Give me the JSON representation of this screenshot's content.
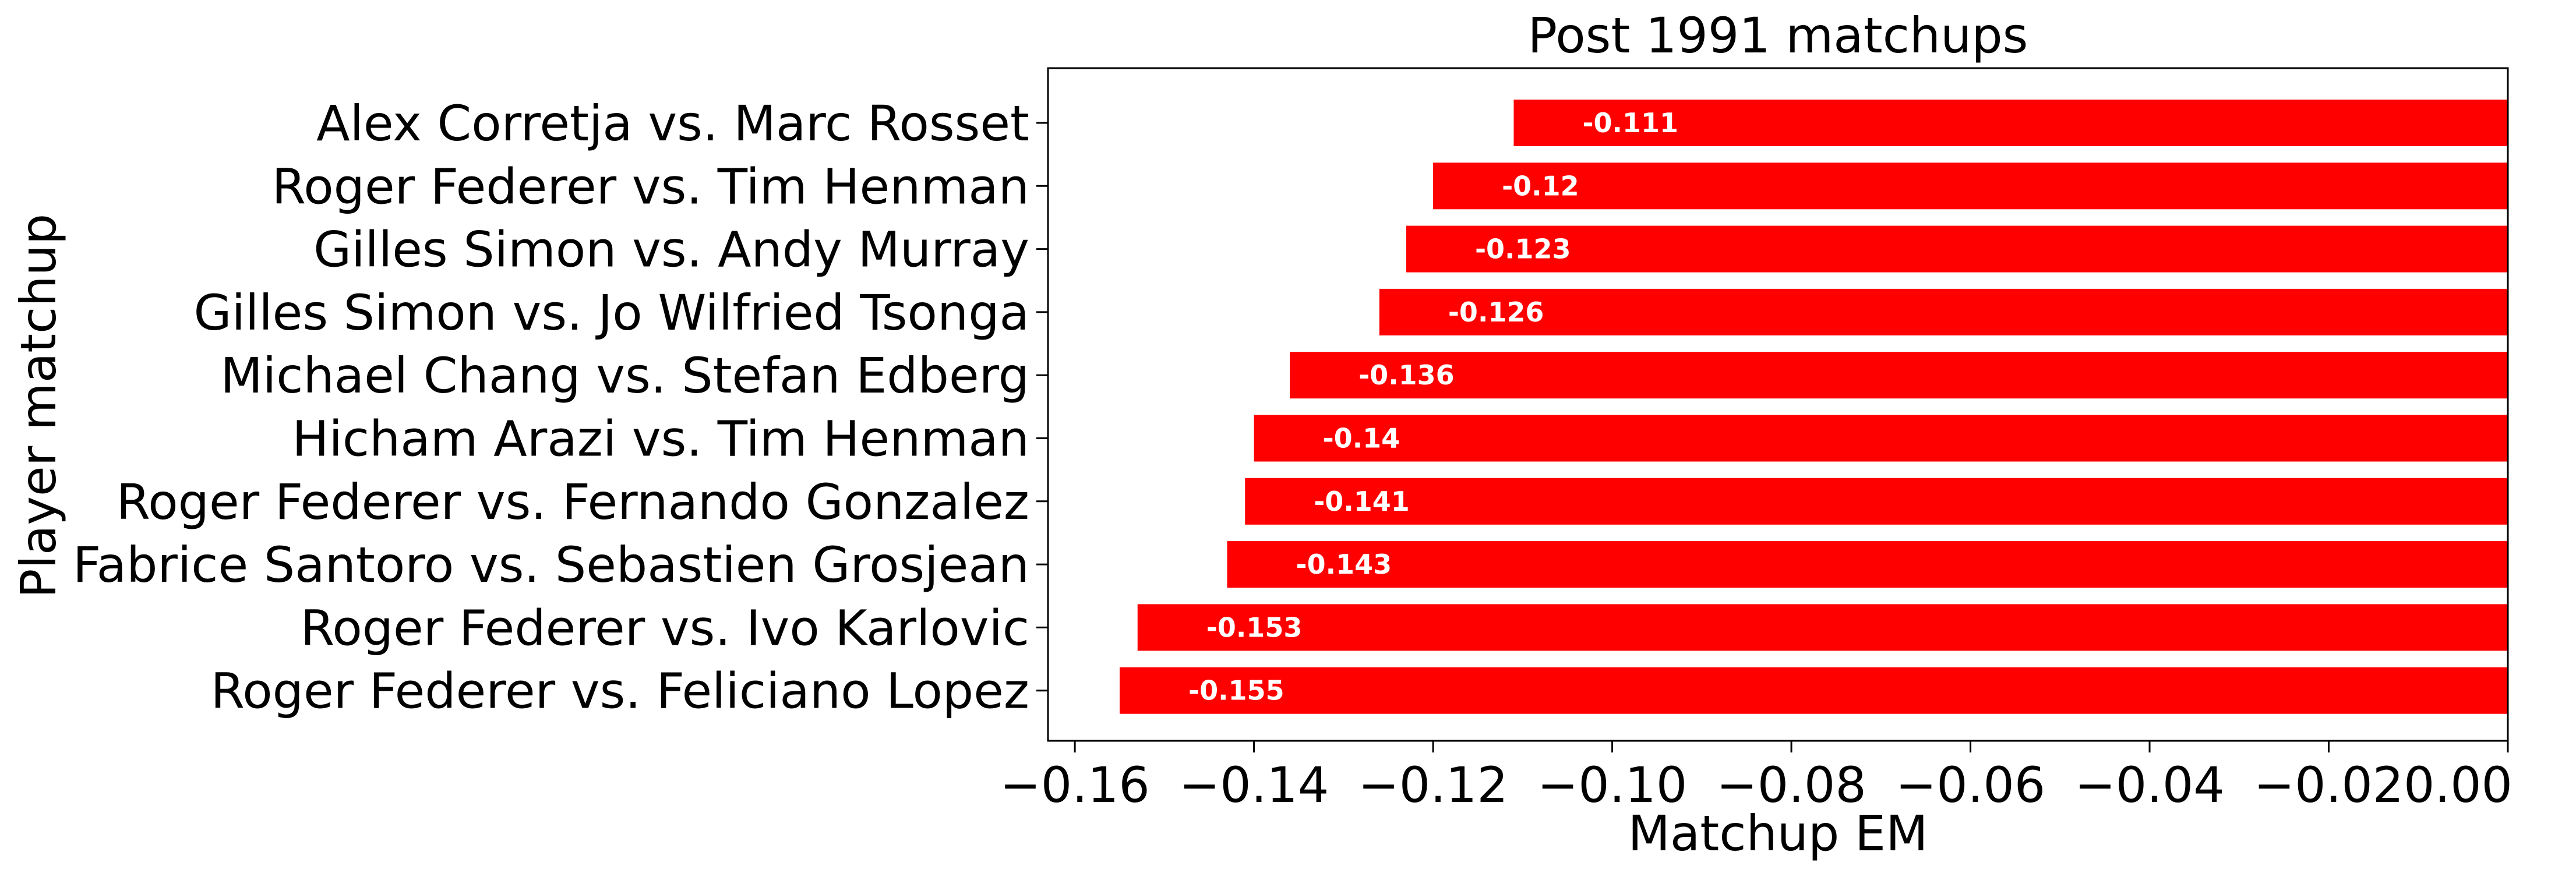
{
  "chart_data": {
    "type": "bar",
    "orientation": "horizontal",
    "title": "Post 1991 matchups",
    "xlabel": "Matchup EM",
    "ylabel": "Player matchup",
    "categories": [
      "Alex Corretja vs. Marc Rosset",
      "Roger Federer vs. Tim Henman",
      "Gilles Simon vs. Andy Murray",
      "Gilles Simon vs. Jo Wilfried Tsonga",
      "Michael Chang vs. Stefan Edberg",
      "Hicham Arazi vs. Tim Henman",
      "Roger Federer vs. Fernando Gonzalez",
      "Fabrice Santoro vs. Sebastien Grosjean",
      "Roger Federer vs. Ivo Karlovic",
      "Roger Federer vs. Feliciano Lopez"
    ],
    "values": [
      -0.111,
      -0.12,
      -0.123,
      -0.126,
      -0.136,
      -0.14,
      -0.141,
      -0.143,
      -0.153,
      -0.155
    ],
    "data_labels": [
      "-0.111",
      "-0.12",
      "-0.123",
      "-0.126",
      "-0.136",
      "-0.14",
      "-0.141",
      "-0.143",
      "-0.153",
      "-0.155"
    ],
    "xlim": [
      -0.163,
      0.0
    ],
    "xticks": [
      -0.16,
      -0.14,
      -0.12,
      -0.1,
      -0.08,
      -0.06,
      -0.04,
      -0.02,
      0.0
    ],
    "xtick_labels": [
      "−0.16",
      "−0.14",
      "−0.12",
      "−0.10",
      "−0.08",
      "−0.06",
      "−0.04",
      "−0.02",
      "0.00"
    ],
    "bar_color": "#ff0000",
    "grid": false,
    "legend": "none"
  }
}
